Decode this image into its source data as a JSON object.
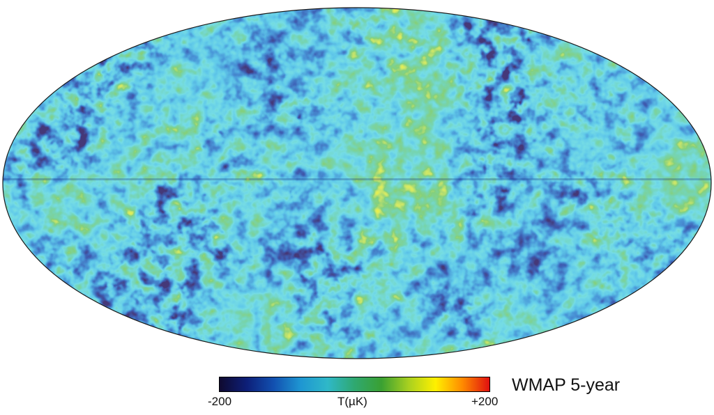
{
  "map": {
    "title": "WMAP 5-year",
    "projection": "mollweide",
    "colorbar": {
      "min_label": "-200",
      "max_label": "+200",
      "unit_label": "T(µK)",
      "min_value": -200,
      "max_value": 200,
      "stops": [
        "#0f0a30",
        "#0d1f78",
        "#1250b0",
        "#1e96d2",
        "#2fb8c8",
        "#2fa870",
        "#3aa032",
        "#a8d020",
        "#fff000",
        "#ff8a00",
        "#e01010"
      ]
    },
    "outline_color": "#1a1a1a"
  }
}
